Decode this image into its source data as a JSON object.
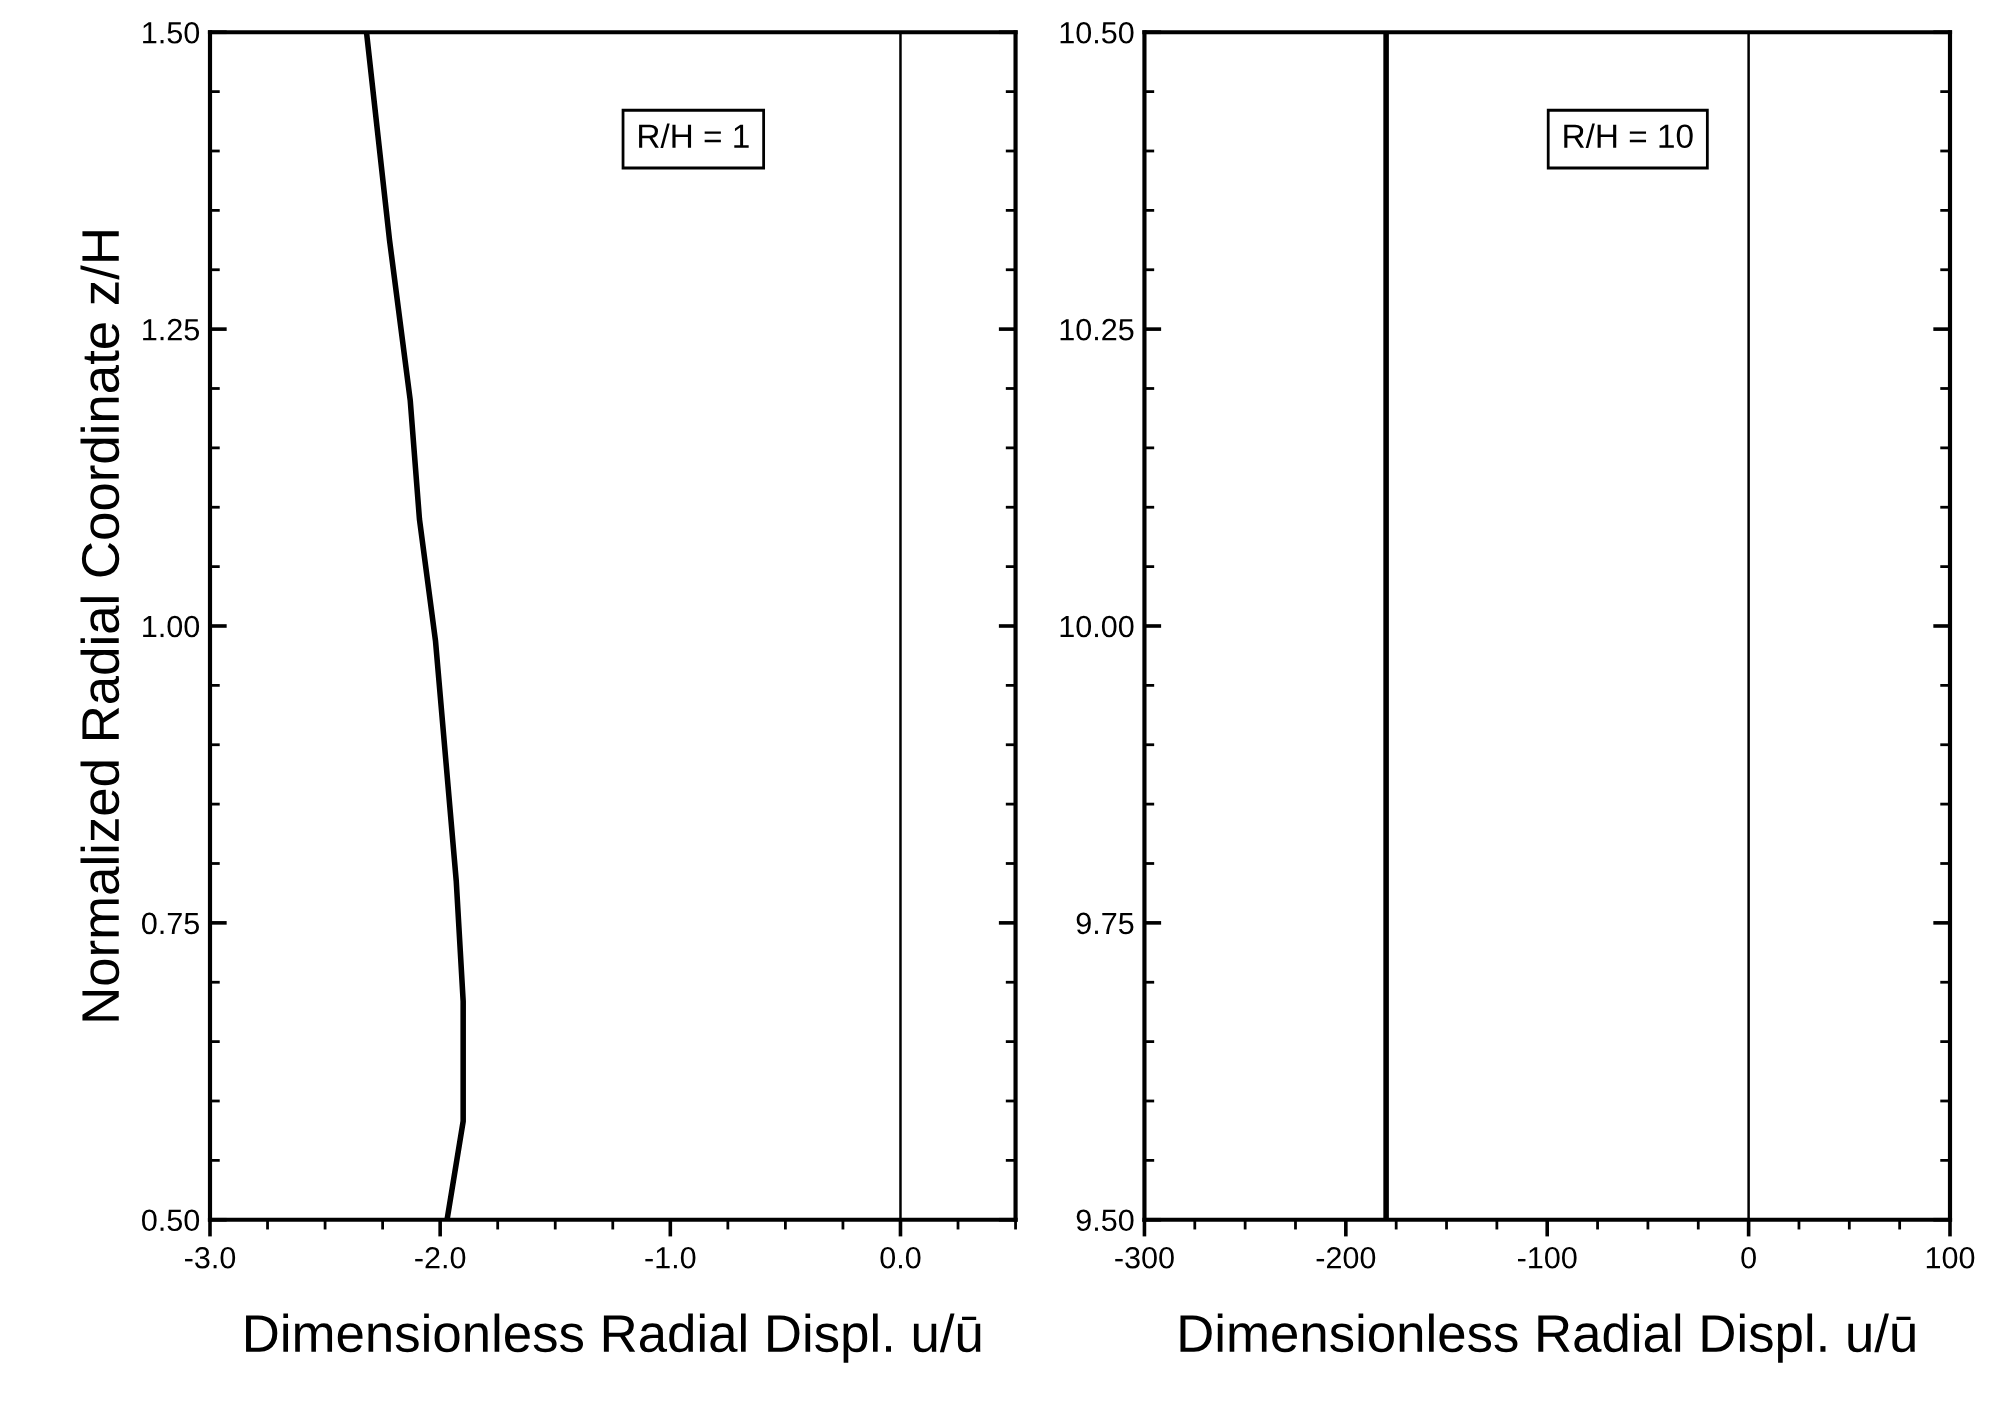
{
  "chart_data": [
    {
      "type": "line",
      "xlabel": "Dimensionless Radial Displ. u/ū",
      "ylabel": "Normalized Radial Coordinate z/H",
      "annotations": [
        "R/H = 1"
      ],
      "x": [
        -1.97,
        -1.9,
        -1.9,
        -1.93,
        -2.02,
        -2.09,
        -2.13,
        -2.22,
        -2.32
      ],
      "series": [
        {
          "color": "#000000",
          "values": [
            0.5,
            0.583,
            0.684,
            0.785,
            0.987,
            1.09,
            1.19,
            1.325,
            1.5
          ]
        }
      ],
      "xlim": [
        -3.0,
        0.5
      ],
      "xticks": [
        {
          "value": -3.0,
          "label": "-3.0"
        },
        {
          "value": -2.0,
          "label": "-2.0"
        },
        {
          "value": -1.0,
          "label": "-1.0"
        },
        {
          "value": 0.0,
          "label": "0.0"
        }
      ],
      "ylim": [
        0.5,
        1.5
      ],
      "yticks": [
        {
          "value": 0.5,
          "label": "0.50"
        },
        {
          "value": 0.75,
          "label": "0.75"
        },
        {
          "value": 1.0,
          "label": "1.00"
        },
        {
          "value": 1.25,
          "label": "1.25"
        },
        {
          "value": 1.5,
          "label": "1.50"
        }
      ],
      "ref_lines": [
        {
          "axis": "x",
          "value": 0,
          "color": "#000000"
        }
      ],
      "grid": false,
      "marker": "none",
      "line_style": "solid"
    },
    {
      "type": "line",
      "xlabel": "Dimensionless Radial Displ. u/ū",
      "annotations": [
        "R/H = 10"
      ],
      "x": [
        -180,
        -180
      ],
      "series": [
        {
          "color": "#000000",
          "values": [
            9.5,
            10.5
          ]
        }
      ],
      "xlim": [
        -300,
        100
      ],
      "xticks": [
        -300,
        -200,
        -100,
        0,
        100
      ],
      "ylim": [
        9.5,
        10.5
      ],
      "yticks": [
        {
          "value": 9.5,
          "label": "9.50"
        },
        {
          "value": 9.75,
          "label": "9.75"
        },
        {
          "value": 10.0,
          "label": "10.00"
        },
        {
          "value": 10.25,
          "label": "10.25"
        },
        {
          "value": 10.5,
          "label": "10.50"
        }
      ],
      "ref_lines": [
        {
          "axis": "x",
          "value": 0,
          "color": "#000000"
        }
      ],
      "grid": false,
      "marker": "none",
      "line_style": "solid"
    }
  ]
}
